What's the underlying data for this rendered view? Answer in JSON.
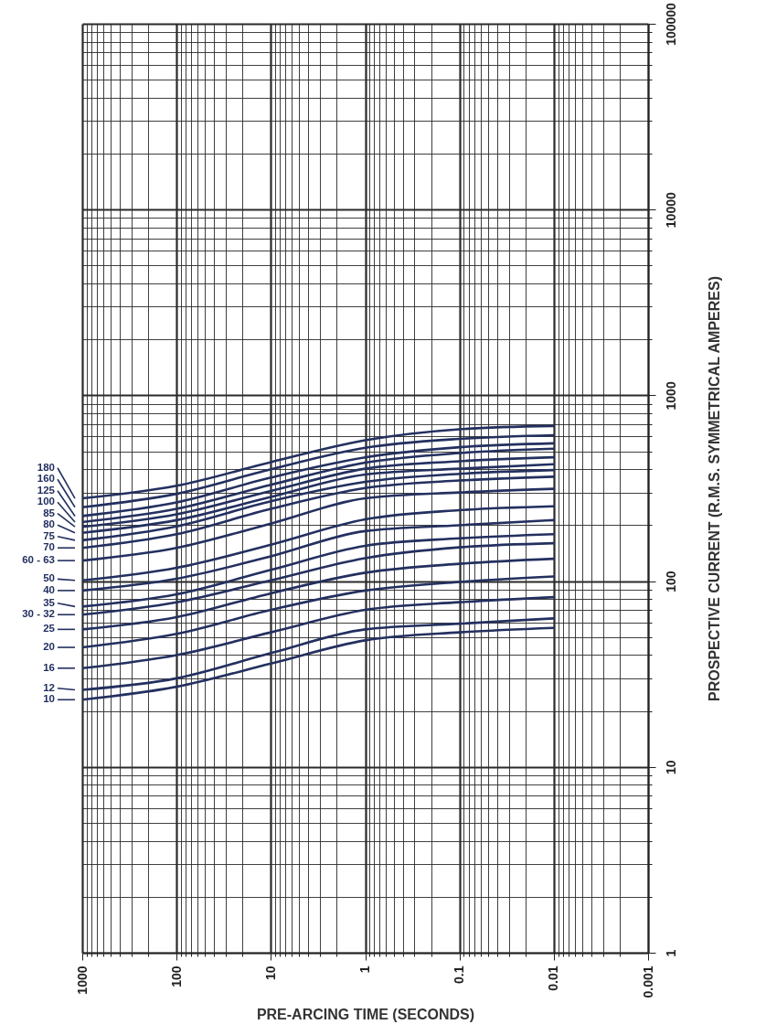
{
  "chart_data": {
    "type": "line",
    "xlabel": "PRE-ARCING TIME (SECONDS)",
    "ylabel": "PROSPECTIVE CURRENT   (R.M.S. SYMMETRICAL AMPERES)",
    "log": "xy",
    "grid": true,
    "line_style": "solid",
    "legend": "left",
    "xlim": [
      1000,
      0.001
    ],
    "ylim": [
      1,
      100000
    ],
    "xticks": [
      0.001,
      {
        "value": 0.002,
        "label": null
      },
      {
        "value": 0.003,
        "label": null
      },
      {
        "value": 0.004,
        "label": null
      },
      {
        "value": 0.005,
        "label": null
      },
      {
        "value": 0.006,
        "label": null
      },
      {
        "value": 0.007,
        "label": null
      },
      {
        "value": 0.008,
        "label": null
      },
      {
        "value": 0.009,
        "label": null
      },
      0.01,
      {
        "value": 0.02,
        "label": null
      },
      {
        "value": 0.03,
        "label": null
      },
      {
        "value": 0.04,
        "label": null
      },
      {
        "value": 0.05,
        "label": null
      },
      {
        "value": 0.06,
        "label": null
      },
      {
        "value": 0.07,
        "label": null
      },
      {
        "value": 0.08,
        "label": null
      },
      {
        "value": 0.09,
        "label": null
      },
      0.1,
      {
        "value": 0.2,
        "label": null
      },
      {
        "value": 0.3,
        "label": null
      },
      {
        "value": 0.4,
        "label": null
      },
      {
        "value": 0.5,
        "label": null
      },
      {
        "value": 0.6,
        "label": null
      },
      {
        "value": 0.7,
        "label": null
      },
      {
        "value": 0.8,
        "label": null
      },
      {
        "value": 0.9,
        "label": null
      },
      1,
      {
        "value": 2,
        "label": null
      },
      {
        "value": 3,
        "label": null
      },
      {
        "value": 4,
        "label": null
      },
      {
        "value": 5,
        "label": null
      },
      {
        "value": 6,
        "label": null
      },
      {
        "value": 7,
        "label": null
      },
      {
        "value": 8,
        "label": null
      },
      {
        "value": 9,
        "label": null
      },
      10,
      {
        "value": 20,
        "label": null
      },
      {
        "value": 30,
        "label": null
      },
      {
        "value": 40,
        "label": null
      },
      {
        "value": 50,
        "label": null
      },
      {
        "value": 60,
        "label": null
      },
      {
        "value": 70,
        "label": null
      },
      {
        "value": 80,
        "label": null
      },
      {
        "value": 90,
        "label": null
      },
      100,
      {
        "value": 200,
        "label": null
      },
      {
        "value": 300,
        "label": null
      },
      {
        "value": 400,
        "label": null
      },
      {
        "value": 500,
        "label": null
      },
      {
        "value": 600,
        "label": null
      },
      {
        "value": 700,
        "label": null
      },
      {
        "value": 800,
        "label": null
      },
      {
        "value": 900,
        "label": null
      },
      1000
    ],
    "yticks": [
      1,
      {
        "value": 2,
        "label": null
      },
      {
        "value": 3,
        "label": null
      },
      {
        "value": 4,
        "label": null
      },
      {
        "value": 5,
        "label": null
      },
      {
        "value": 6,
        "label": null
      },
      {
        "value": 7,
        "label": null
      },
      {
        "value": 8,
        "label": null
      },
      {
        "value": 9,
        "label": null
      },
      10,
      {
        "value": 20,
        "label": null
      },
      {
        "value": 30,
        "label": null
      },
      {
        "value": 40,
        "label": null
      },
      {
        "value": 50,
        "label": null
      },
      {
        "value": 60,
        "label": null
      },
      {
        "value": 70,
        "label": null
      },
      {
        "value": 80,
        "label": null
      },
      {
        "value": 90,
        "label": null
      },
      100,
      {
        "value": 200,
        "label": null
      },
      {
        "value": 300,
        "label": null
      },
      {
        "value": 400,
        "label": null
      },
      {
        "value": 500,
        "label": null
      },
      {
        "value": 600,
        "label": null
      },
      {
        "value": 700,
        "label": null
      },
      {
        "value": 800,
        "label": null
      },
      {
        "value": 900,
        "label": null
      },
      1000,
      {
        "value": 2000,
        "label": null
      },
      {
        "value": 3000,
        "label": null
      },
      {
        "value": 4000,
        "label": null
      },
      {
        "value": 5000,
        "label": null
      },
      {
        "value": 6000,
        "label": null
      },
      {
        "value": 7000,
        "label": null
      },
      {
        "value": 8000,
        "label": null
      },
      {
        "value": 9000,
        "label": null
      },
      10000,
      {
        "value": 20000,
        "label": null
      },
      {
        "value": 30000,
        "label": null
      },
      {
        "value": 40000,
        "label": null
      },
      {
        "value": 50000,
        "label": null
      },
      {
        "value": 60000,
        "label": null
      },
      {
        "value": 70000,
        "label": null
      },
      {
        "value": 80000,
        "label": null
      },
      {
        "value": 90000,
        "label": null
      },
      100000
    ],
    "x": [
      1000,
      100,
      10,
      1,
      0.1,
      0.01
    ],
    "series": [
      {
        "name": "180",
        "color": "#23305f",
        "values": [
          279,
          326,
          437,
          573,
          657,
          684
        ]
      },
      {
        "name": "160",
        "color": "#23305f",
        "values": [
          250,
          295,
          400,
          522,
          583,
          610
        ]
      },
      {
        "name": "125",
        "color": "#23305f",
        "values": [
          224,
          265,
          361,
          464,
          526,
          552
        ]
      },
      {
        "name": "100",
        "color": "#23305f",
        "values": [
          208,
          245,
          330,
          434,
          489,
          516
        ]
      },
      {
        "name": "85",
        "color": "#23305f",
        "values": [
          196,
          229,
          306,
          403,
          442,
          464
        ]
      },
      {
        "name": "80",
        "color": "#23305f",
        "values": [
          182,
          213,
          284,
          375,
          403,
          426
        ]
      },
      {
        "name": "75",
        "color": "#23305f",
        "values": [
          166,
          197,
          269,
          342,
          378,
          396
        ]
      },
      {
        "name": "70",
        "color": "#23305f",
        "values": [
          151,
          179,
          245,
          317,
          348,
          365
        ]
      },
      {
        "name": "60 - 63",
        "color": "#23305f",
        "values": [
          129,
          151,
          204,
          279,
          300,
          314
        ]
      },
      {
        "name": "50",
        "color": "#23305f",
        "values": [
          101,
          118,
          157,
          215,
          241,
          253
        ]
      },
      {
        "name": "40",
        "color": "#23305f",
        "values": [
          89,
          103,
          136,
          186,
          200,
          213
        ]
      },
      {
        "name": "35",
        "color": "#23305f",
        "values": [
          73,
          85,
          115,
          155,
          170,
          179
        ]
      },
      {
        "name": "30 - 32",
        "color": "#23305f",
        "values": [
          66,
          77,
          101,
          133,
          152,
          160
        ]
      },
      {
        "name": "25",
        "color": "#23305f",
        "values": [
          55,
          64,
          86,
          111,
          124,
          132
        ]
      },
      {
        "name": "20",
        "color": "#23305f",
        "values": [
          44,
          52,
          70,
          89,
          99,
          106
        ]
      },
      {
        "name": "16",
        "color": "#23305f",
        "values": [
          34,
          40,
          53,
          70,
          77,
          82
        ]
      },
      {
        "name": "12",
        "color": "#23305f",
        "values": [
          26,
          30,
          41,
          55,
          59,
          63
        ]
      },
      {
        "name": "10",
        "color": "#23305f",
        "values": [
          23,
          27,
          36,
          48,
          53,
          56
        ]
      }
    ]
  }
}
